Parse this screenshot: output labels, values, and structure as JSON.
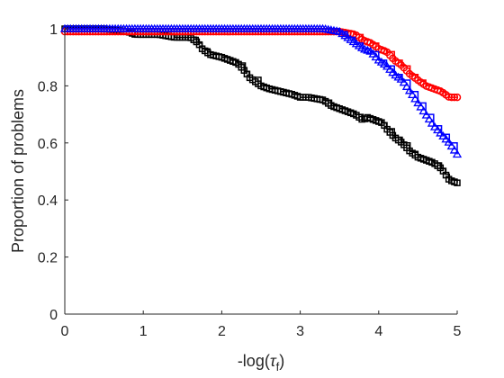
{
  "chart_data": {
    "type": "line",
    "title": "",
    "xlabel_main": "-log(",
    "xlabel_tau": "τ",
    "xlabel_sub": "f",
    "xlabel_close": ")",
    "ylabel": "Proportion of problems",
    "xlim": [
      0,
      5
    ],
    "ylim": [
      0,
      1
    ],
    "grid": false,
    "xticks": [
      0,
      1,
      2,
      3,
      4,
      5
    ],
    "yticks": [
      0,
      0.2,
      0.4,
      0.6,
      0.8,
      1
    ],
    "xtick_labels": [
      "0",
      "1",
      "2",
      "3",
      "4",
      "5"
    ],
    "ytick_labels": [
      "0",
      "0.2",
      "0.4",
      "0.6",
      "0.8",
      "1"
    ],
    "series": [
      {
        "color": "#000000",
        "marker": "square",
        "x": [
          0,
          0.5,
          0.8,
          0.9,
          1.0,
          1.2,
          1.4,
          1.6,
          1.7,
          1.75,
          1.85,
          2.0,
          2.1,
          2.2,
          2.3,
          2.35,
          2.5,
          2.6,
          2.75,
          2.9,
          3.0,
          3.1,
          3.3,
          3.4,
          3.5,
          3.6,
          3.7,
          3.8,
          3.85,
          3.95,
          4.05,
          4.1,
          4.2,
          4.3,
          4.4,
          4.5,
          4.6,
          4.7,
          4.8,
          4.85,
          4.9,
          5.0
        ],
        "y": [
          1.0,
          1.0,
          0.99,
          0.98,
          0.98,
          0.98,
          0.97,
          0.97,
          0.95,
          0.93,
          0.91,
          0.9,
          0.89,
          0.88,
          0.85,
          0.83,
          0.8,
          0.79,
          0.78,
          0.77,
          0.76,
          0.76,
          0.75,
          0.73,
          0.72,
          0.71,
          0.7,
          0.68,
          0.69,
          0.68,
          0.67,
          0.65,
          0.62,
          0.6,
          0.57,
          0.55,
          0.54,
          0.53,
          0.51,
          0.49,
          0.47,
          0.46
        ]
      },
      {
        "color": "#ff0000",
        "marker": "circle",
        "x": [
          0,
          1.0,
          2.0,
          3.0,
          3.3,
          3.5,
          3.7,
          3.8,
          3.9,
          4.0,
          4.1,
          4.2,
          4.3,
          4.4,
          4.5,
          4.6,
          4.7,
          4.8,
          4.85,
          4.9,
          5.0
        ],
        "y": [
          0.99,
          0.99,
          0.99,
          0.99,
          0.99,
          0.99,
          0.98,
          0.96,
          0.95,
          0.93,
          0.92,
          0.89,
          0.87,
          0.84,
          0.82,
          0.8,
          0.79,
          0.78,
          0.77,
          0.76,
          0.76
        ]
      },
      {
        "color": "#0000ff",
        "marker": "triangle",
        "x": [
          0,
          1.0,
          2.0,
          3.0,
          3.3,
          3.5,
          3.6,
          3.7,
          3.8,
          3.9,
          4.0,
          4.1,
          4.2,
          4.3,
          4.4,
          4.5,
          4.6,
          4.7,
          4.8,
          4.9,
          5.0
        ],
        "y": [
          1.0,
          1.0,
          1.0,
          1.0,
          1.0,
          0.99,
          0.97,
          0.95,
          0.93,
          0.92,
          0.89,
          0.87,
          0.84,
          0.82,
          0.78,
          0.74,
          0.7,
          0.66,
          0.63,
          0.6,
          0.56
        ]
      }
    ]
  }
}
